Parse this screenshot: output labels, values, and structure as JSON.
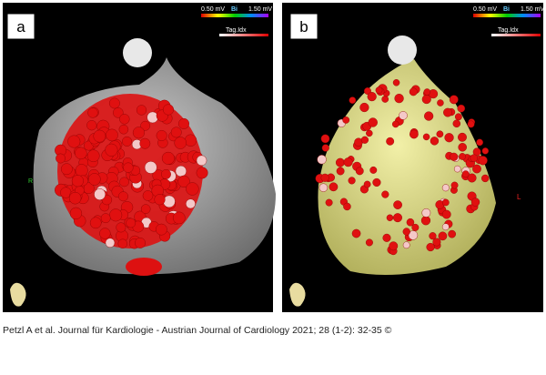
{
  "panels": [
    {
      "label": "a",
      "scale": {
        "min": "0.50 mV",
        "name": "Bi",
        "max": "1.50 mV"
      },
      "legend": "Tag.Idx",
      "orientation": "R"
    },
    {
      "label": "b",
      "scale": {
        "min": "0.50 mV",
        "name": "Bi",
        "max": "1.50 mV"
      },
      "legend": "Tag.Idx",
      "orientation": "L"
    }
  ],
  "caption": "Petzl A et al. Journal für Kardiologie - Austrian Journal of Cardiology 2021; 28 (1-2): 32-35 ©"
}
